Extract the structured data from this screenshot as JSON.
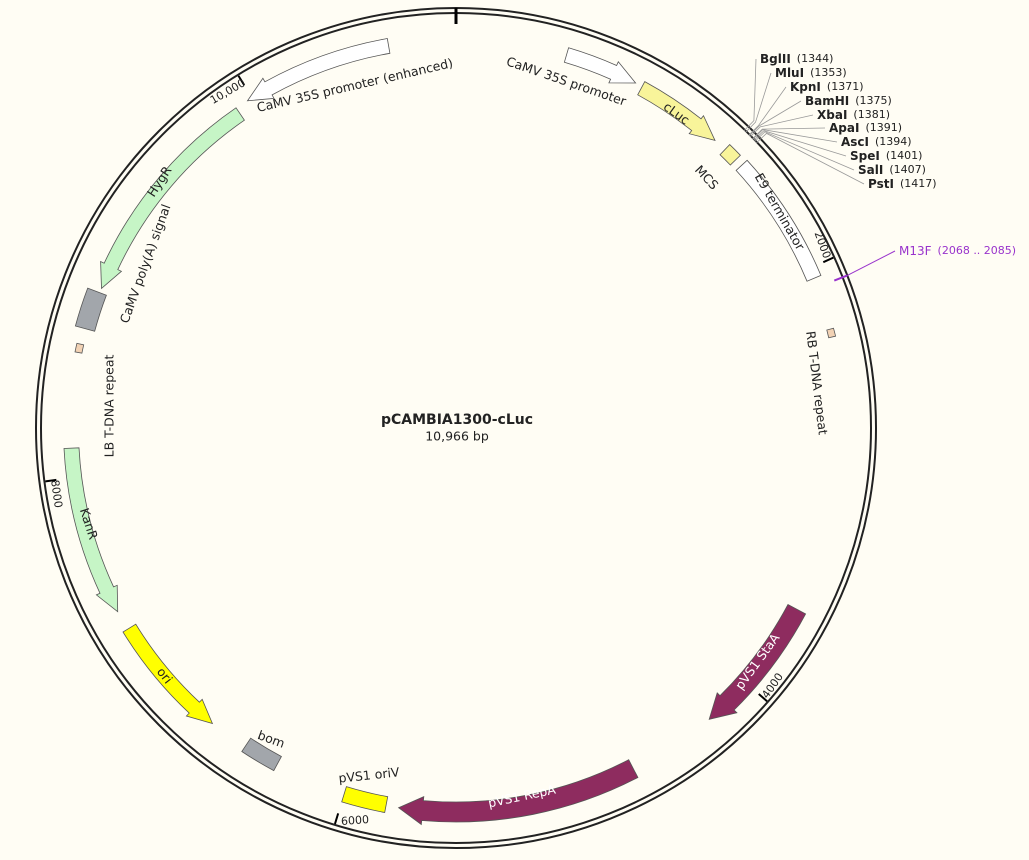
{
  "plasmid": {
    "name": "pCAMBIA1300-cLuc",
    "size": "10,966 bp"
  },
  "ticks": [
    "2000",
    "4000",
    "6000",
    "8000",
    "10,000"
  ],
  "features": [
    {
      "label": "CaMV 35S promoter (enhanced)"
    },
    {
      "label": "CaMV 35S promoter"
    },
    {
      "label": "cLuc"
    },
    {
      "label": "MCS"
    },
    {
      "label": "E9 terminator"
    },
    {
      "label": "RB T-DNA repeat"
    },
    {
      "label": "pVS1 StaA"
    },
    {
      "label": "pVS1 RepA"
    },
    {
      "label": "pVS1 oriV"
    },
    {
      "label": "bom"
    },
    {
      "label": "ori"
    },
    {
      "label": "KanR"
    },
    {
      "label": "LB T-DNA repeat"
    },
    {
      "label": "CaMV poly(A) signal"
    },
    {
      "label": "HygR"
    }
  ],
  "sites": [
    {
      "name": "BglII",
      "position": "(1344)"
    },
    {
      "name": "MluI",
      "position": "(1353)"
    },
    {
      "name": "KpnI",
      "position": "(1371)"
    },
    {
      "name": "BamHI",
      "position": "(1375)"
    },
    {
      "name": "XbaI",
      "position": "(1381)"
    },
    {
      "name": "ApaI",
      "position": "(1391)"
    },
    {
      "name": "AscI",
      "position": "(1394)"
    },
    {
      "name": "SpeI",
      "position": "(1401)"
    },
    {
      "name": "SalI",
      "position": "(1407)"
    },
    {
      "name": "PstI",
      "position": "(1417)"
    }
  ],
  "primers": [
    {
      "name": "M13F",
      "range": "(2068 .. 2085)"
    }
  ]
}
